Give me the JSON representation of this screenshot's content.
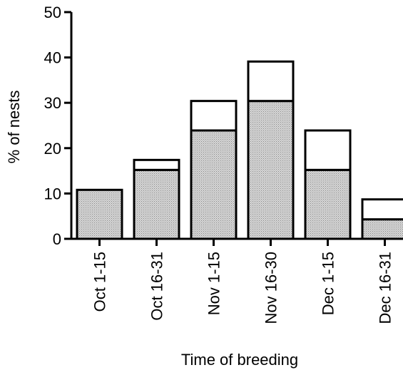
{
  "chart_data": {
    "type": "bar",
    "stacked": true,
    "categories": [
      "Oct 1-15",
      "Oct 16-31",
      "Nov 1-15",
      "Nov 16-30",
      "Dec 1-15",
      "Dec 16-31"
    ],
    "series": [
      {
        "values": [
          10.8,
          15.2,
          23.9,
          30.4,
          15.2,
          4.3
        ],
        "color": "#cfcfcf"
      },
      {
        "values": [
          0,
          2.2,
          6.5,
          8.7,
          8.7,
          4.4
        ],
        "color": "#ffffff"
      }
    ],
    "xlabel": "Time of breeding",
    "ylabel": "% of nests",
    "ylim": [
      0,
      50
    ],
    "yticks": [
      0,
      10,
      20,
      30,
      40,
      50
    ],
    "grid": false,
    "legend": "none"
  }
}
